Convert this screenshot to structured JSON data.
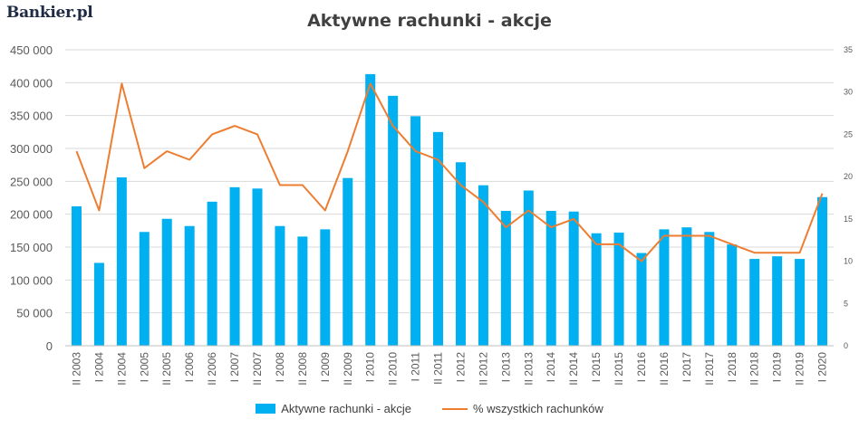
{
  "logo": "Bankier.pl",
  "colors": {
    "bar": "#00b0f0",
    "line": "#ed7d31",
    "grid": "#d9d9d9",
    "text": "#595959"
  },
  "chart_data": {
    "type": "bar",
    "title": "Aktywne rachunki - akcje",
    "categories": [
      "II 2003",
      "I 2004",
      "II 2004",
      "I 2005",
      "II 2005",
      "I 2006",
      "II 2006",
      "I 2007",
      "II 2007",
      "I 2008",
      "II 2008",
      "I 2009",
      "II 2009",
      "I 2010",
      "II 2010",
      "I 2011",
      "II 2011",
      "I 2012",
      "II 2012",
      "I 2013",
      "II 2013",
      "I 2014",
      "II 2014",
      "I 2015",
      "II 2015",
      "I 2016",
      "II 2016",
      "I 2017",
      "II 2017",
      "I 2018",
      "II 2018",
      "I 2019",
      "II 2019",
      "I 2020"
    ],
    "series": [
      {
        "name": "Aktywne rachunki - akcje",
        "type": "bar",
        "axis": "left",
        "values": [
          212000,
          126000,
          256000,
          173000,
          193000,
          182000,
          219000,
          241000,
          239000,
          182000,
          166000,
          177000,
          255000,
          413000,
          380000,
          349000,
          325000,
          279000,
          244000,
          205000,
          236000,
          205000,
          204000,
          171000,
          172000,
          141000,
          177000,
          180000,
          173000,
          154000,
          132000,
          136000,
          132000,
          226000
        ]
      },
      {
        "name": "% wszystkich rachunków",
        "type": "line",
        "axis": "right",
        "values": [
          23,
          16,
          31,
          21,
          23,
          22,
          25,
          26,
          25,
          19,
          19,
          16,
          23,
          31,
          26,
          23,
          22,
          19,
          17,
          14,
          16,
          14,
          15,
          12,
          12,
          10,
          13,
          13,
          13,
          12,
          11,
          11,
          11,
          18
        ]
      }
    ],
    "y_left": {
      "ylim": [
        0,
        450000
      ],
      "ticks": [
        "0",
        "50 000",
        "100 000",
        "150 000",
        "200 000",
        "250 000",
        "300 000",
        "350 000",
        "400 000",
        "450 000"
      ]
    },
    "y_right": {
      "ylim": [
        0,
        35
      ],
      "ticks": [
        "0",
        "5",
        "10",
        "15",
        "20",
        "25",
        "30",
        "35"
      ]
    },
    "grid": true,
    "legend_position": "bottom"
  }
}
